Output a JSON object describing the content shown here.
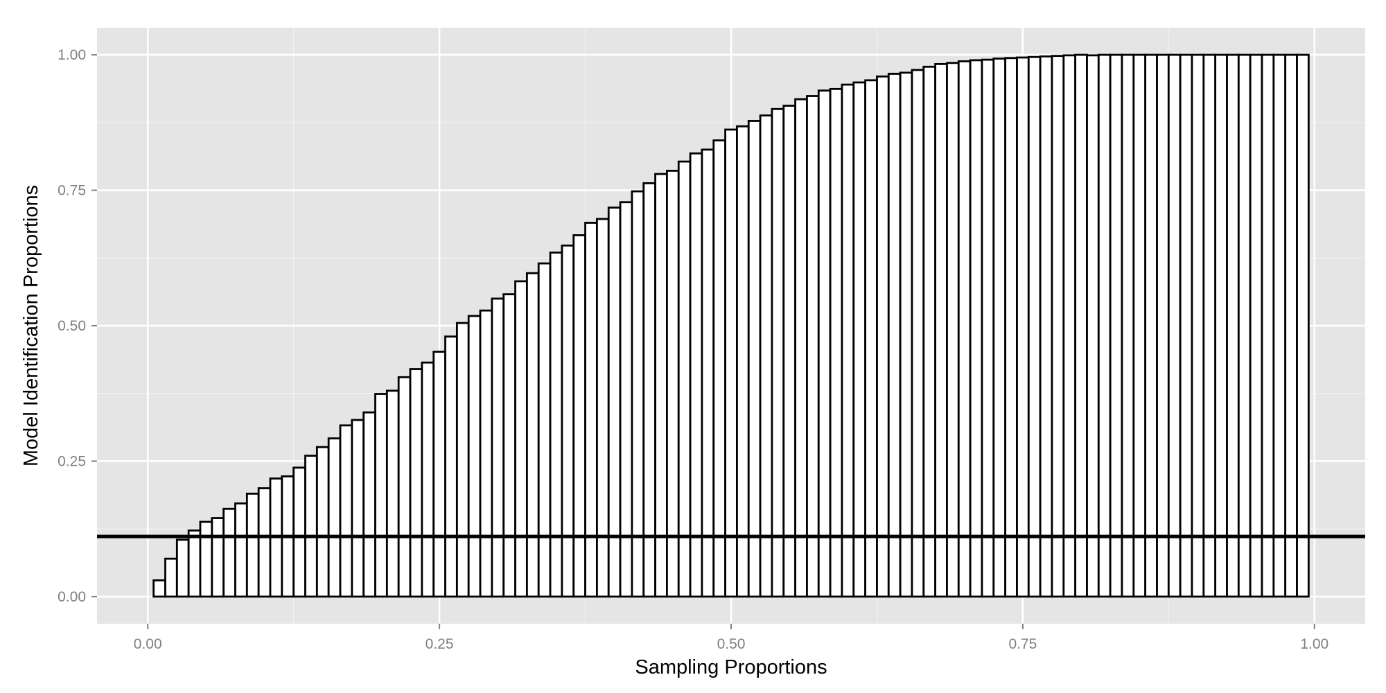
{
  "chart_data": {
    "type": "bar",
    "title": "",
    "xlabel": "Sampling Proportions",
    "ylabel": "Model Identification Proportions",
    "xlim": [
      -0.0435,
      1.0435
    ],
    "ylim": [
      -0.05,
      1.05
    ],
    "x_ticks": [
      0,
      0.25,
      0.5,
      0.75,
      1
    ],
    "x_tick_labels": [
      "0.00",
      "0.25",
      "0.50",
      "0.75",
      "1.00"
    ],
    "y_ticks": [
      0,
      0.25,
      0.5,
      0.75,
      1
    ],
    "y_tick_labels": [
      "0.00",
      "0.25",
      "0.50",
      "0.75",
      "1.00"
    ],
    "bar_width": 0.01,
    "x": [
      0.01,
      0.02,
      0.03,
      0.04,
      0.05,
      0.06,
      0.07,
      0.08,
      0.09,
      0.1,
      0.11,
      0.12,
      0.13,
      0.14,
      0.15,
      0.16,
      0.17,
      0.18,
      0.19,
      0.2,
      0.21,
      0.22,
      0.23,
      0.24,
      0.25,
      0.26,
      0.27,
      0.28,
      0.29,
      0.3,
      0.31,
      0.32,
      0.33,
      0.34,
      0.35,
      0.36,
      0.37,
      0.38,
      0.39,
      0.4,
      0.41,
      0.42,
      0.43,
      0.44,
      0.45,
      0.46,
      0.47,
      0.48,
      0.49,
      0.5,
      0.51,
      0.52,
      0.53,
      0.54,
      0.55,
      0.56,
      0.57,
      0.58,
      0.59,
      0.6,
      0.61,
      0.62,
      0.63,
      0.64,
      0.65,
      0.66,
      0.67,
      0.68,
      0.69,
      0.7,
      0.71,
      0.72,
      0.73,
      0.74,
      0.75,
      0.76,
      0.77,
      0.78,
      0.79,
      0.8,
      0.81,
      0.82,
      0.83,
      0.84,
      0.85,
      0.86,
      0.87,
      0.88,
      0.89,
      0.9,
      0.91,
      0.92,
      0.93,
      0.94,
      0.95,
      0.96,
      0.97,
      0.98,
      0.99
    ],
    "values": [
      0.03,
      0.07,
      0.105,
      0.122,
      0.138,
      0.145,
      0.162,
      0.172,
      0.19,
      0.2,
      0.218,
      0.222,
      0.238,
      0.26,
      0.276,
      0.292,
      0.316,
      0.326,
      0.34,
      0.374,
      0.38,
      0.405,
      0.42,
      0.432,
      0.452,
      0.48,
      0.505,
      0.518,
      0.528,
      0.55,
      0.558,
      0.582,
      0.597,
      0.615,
      0.635,
      0.648,
      0.667,
      0.69,
      0.697,
      0.718,
      0.728,
      0.748,
      0.763,
      0.78,
      0.786,
      0.803,
      0.818,
      0.825,
      0.842,
      0.862,
      0.868,
      0.878,
      0.888,
      0.9,
      0.906,
      0.918,
      0.924,
      0.934,
      0.937,
      0.945,
      0.949,
      0.953,
      0.96,
      0.965,
      0.967,
      0.972,
      0.978,
      0.983,
      0.985,
      0.988,
      0.99,
      0.991,
      0.993,
      0.994,
      0.995,
      0.996,
      0.997,
      0.998,
      0.999,
      1.0,
      0.999,
      1.0,
      1.0,
      1.0,
      1.0,
      1.0,
      1.0,
      1.0,
      1.0,
      1.0,
      1.0,
      1.0,
      1.0,
      1.0,
      1.0,
      1.0,
      1.0,
      1.0,
      1.0
    ],
    "hline": 0.111,
    "grid": true,
    "legend": "none",
    "colors": {
      "panel_background": "#e5e5e5",
      "grid_major": "#ffffff",
      "grid_minor": "#f2f2f2",
      "bar_fill": "#ffffff",
      "bar_stroke": "#000000",
      "hline": "#000000",
      "tick_label": "#7f7f7f",
      "tick_mark": "#7f7f7f"
    }
  }
}
